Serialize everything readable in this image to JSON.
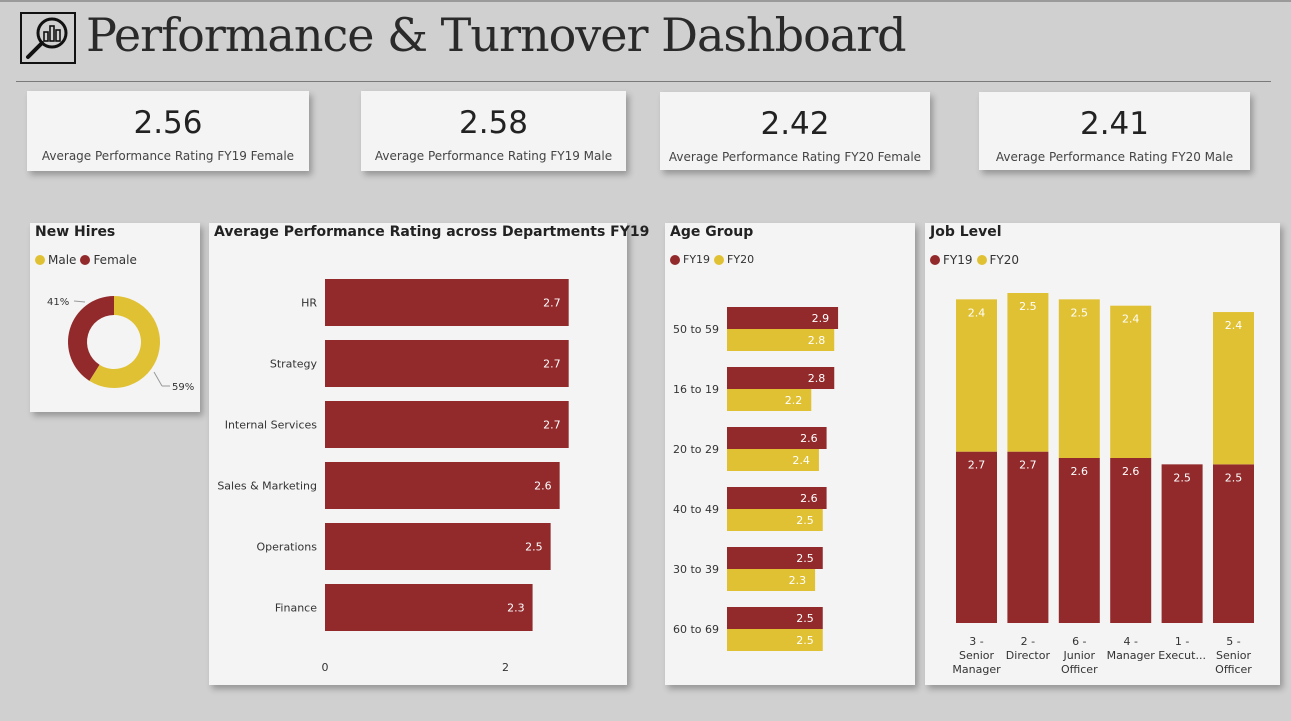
{
  "header": {
    "title": "Performance & Turnover Dashboard",
    "logo_icon": "magnifier-chart-icon"
  },
  "kpis": [
    {
      "value": "2.56",
      "label": "Average Performance Rating FY19 Female"
    },
    {
      "value": "2.58",
      "label": "Average Performance Rating FY19 Male"
    },
    {
      "value": "2.42",
      "label": "Average Performance Rating FY20 Female"
    },
    {
      "value": "2.41",
      "label": "Average Performance Rating FY20 Male"
    }
  ],
  "colors": {
    "fy19": "#922a2c",
    "fy20": "#e1c134",
    "male": "#e1c134",
    "female": "#922a2c"
  },
  "new_hires": {
    "title": "New Hires",
    "legend": [
      "Male",
      "Female"
    ]
  },
  "departments": {
    "title": "Average Performance Rating across Departments FY19"
  },
  "age_group": {
    "title": "Age Group",
    "legend": [
      "FY19",
      "FY20"
    ]
  },
  "job_level": {
    "title": "Job Level",
    "legend": [
      "FY19",
      "FY20"
    ]
  },
  "chart_data": [
    {
      "type": "pie",
      "title": "New Hires",
      "categories": [
        "Male",
        "Female"
      ],
      "values": [
        59,
        41
      ],
      "labels": [
        "59%",
        "41%"
      ]
    },
    {
      "type": "bar",
      "orientation": "horizontal",
      "title": "Average Performance Rating across Departments FY19",
      "categories": [
        "HR",
        "Strategy",
        "Internal Services",
        "Sales & Marketing",
        "Operations",
        "Finance"
      ],
      "values": [
        2.7,
        2.7,
        2.7,
        2.6,
        2.5,
        2.3
      ],
      "xticks": [
        "0",
        "2"
      ],
      "xlim": [
        0,
        2.77
      ]
    },
    {
      "type": "bar",
      "orientation": "horizontal",
      "title": "Age Group",
      "categories": [
        "50 to 59",
        "16 to 19",
        "20 to 29",
        "40 to 49",
        "30 to 39",
        "60 to 69"
      ],
      "series": [
        {
          "name": "FY19",
          "values": [
            2.9,
            2.8,
            2.6,
            2.6,
            2.5,
            2.5
          ]
        },
        {
          "name": "FY20",
          "values": [
            2.8,
            2.2,
            2.4,
            2.5,
            2.3,
            2.5
          ]
        }
      ],
      "xlim": [
        0,
        2.95
      ]
    },
    {
      "type": "bar",
      "stacked": true,
      "title": "Job Level",
      "categories": [
        [
          "3 -",
          "Senior",
          "Manager"
        ],
        [
          "2 -",
          "Director"
        ],
        [
          "6 -",
          "Junior",
          "Officer"
        ],
        [
          "4 -",
          "Manager"
        ],
        [
          "1 -",
          "Execut..."
        ],
        [
          "5 -",
          "Senior",
          "Officer"
        ]
      ],
      "series": [
        {
          "name": "FY19",
          "values": [
            2.7,
            2.7,
            2.6,
            2.6,
            2.5,
            2.5
          ]
        },
        {
          "name": "FY20",
          "values": [
            2.4,
            2.5,
            2.5,
            2.4,
            null,
            2.4
          ]
        }
      ],
      "ylim": [
        0,
        5.2
      ]
    }
  ]
}
